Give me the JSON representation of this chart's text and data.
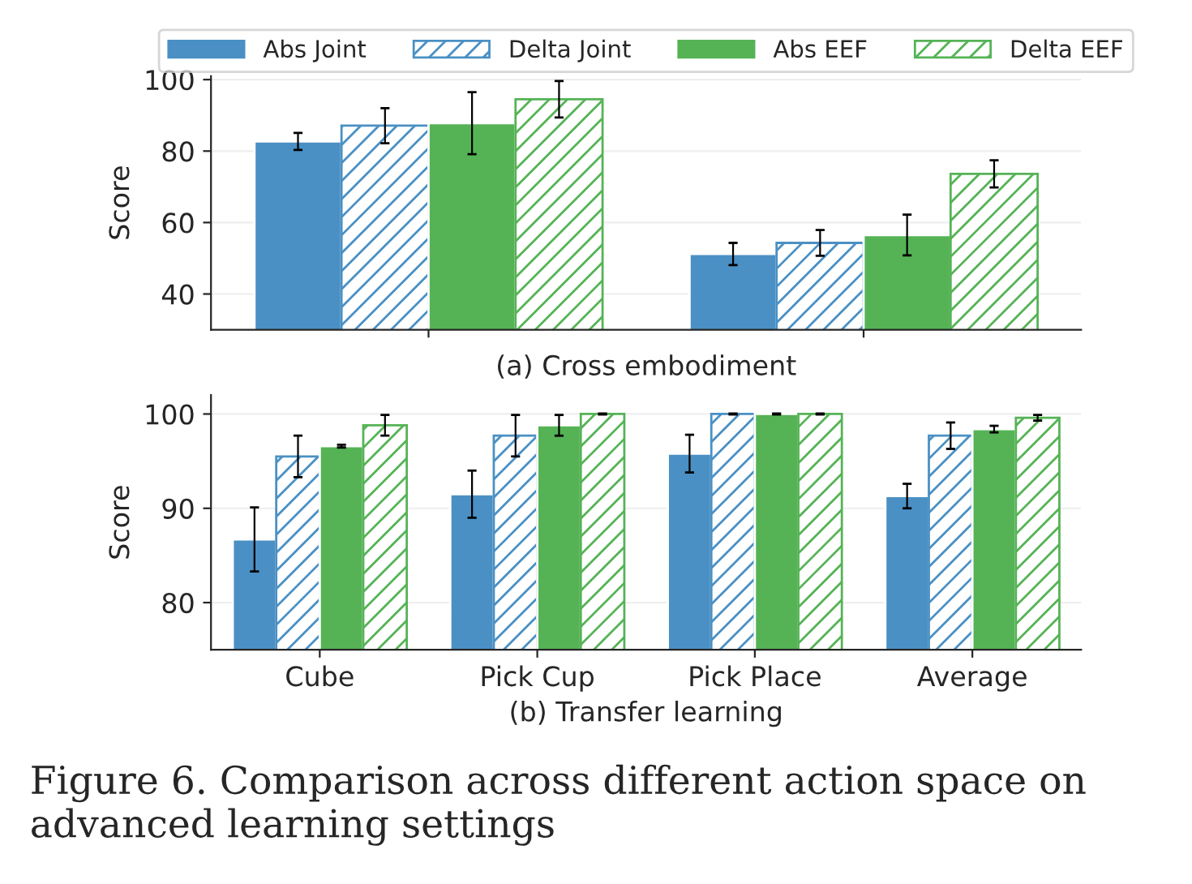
{
  "chart_data": [
    {
      "type": "bar",
      "categories": [
        null,
        null
      ],
      "xlabel": "(a) Cross embodiment",
      "ylabel": "Score",
      "ylim": [
        30,
        101
      ],
      "yticks": [
        40,
        60,
        80,
        100
      ],
      "grid": "y",
      "legend": "top",
      "series": [
        {
          "name": "Abs Joint",
          "color": "#4a90c4",
          "values": [
            82.7,
            51.2
          ],
          "errors": [
            2.4,
            3.1
          ]
        },
        {
          "name": "Delta Joint",
          "color": "#4a90c4",
          "values": [
            87.1,
            54.3
          ],
          "errors": [
            4.9,
            3.6
          ]
        },
        {
          "name": "Abs EEF",
          "color": "#55b355",
          "values": [
            87.8,
            56.5
          ],
          "errors": [
            8.7,
            5.7
          ]
        },
        {
          "name": "Delta EEF",
          "color": "#55b355",
          "values": [
            94.5,
            73.6
          ],
          "errors": [
            5.1,
            3.8
          ]
        }
      ]
    },
    {
      "type": "bar",
      "categories": [
        "Cube",
        "Pick Cup",
        "Pick Place",
        "Average"
      ],
      "xlabel": "(b) Transfer learning",
      "ylabel": "Score",
      "ylim": [
        75,
        102
      ],
      "yticks": [
        80,
        90,
        100
      ],
      "grid": "y",
      "series": [
        {
          "color": "#4a90c4",
          "values": [
            86.7,
            91.5,
            95.8,
            91.3
          ],
          "errors": [
            3.4,
            2.5,
            2.0,
            1.3
          ]
        },
        {
          "color": "#4a90c4",
          "values": [
            95.5,
            97.7,
            100,
            97.7
          ],
          "errors": [
            2.2,
            2.2,
            0.05,
            1.4
          ]
        },
        {
          "color": "#55b355",
          "values": [
            96.6,
            98.8,
            100,
            98.4
          ],
          "errors": [
            0.15,
            1.1,
            0.05,
            0.35
          ]
        },
        {
          "color": "#55b355",
          "values": [
            98.8,
            100,
            100,
            99.6
          ],
          "errors": [
            1.1,
            0.05,
            0.05,
            0.3
          ]
        }
      ],
      "annotations": [
        "Figure 6. Comparison across different action space on advanced learning settings"
      ]
    }
  ]
}
